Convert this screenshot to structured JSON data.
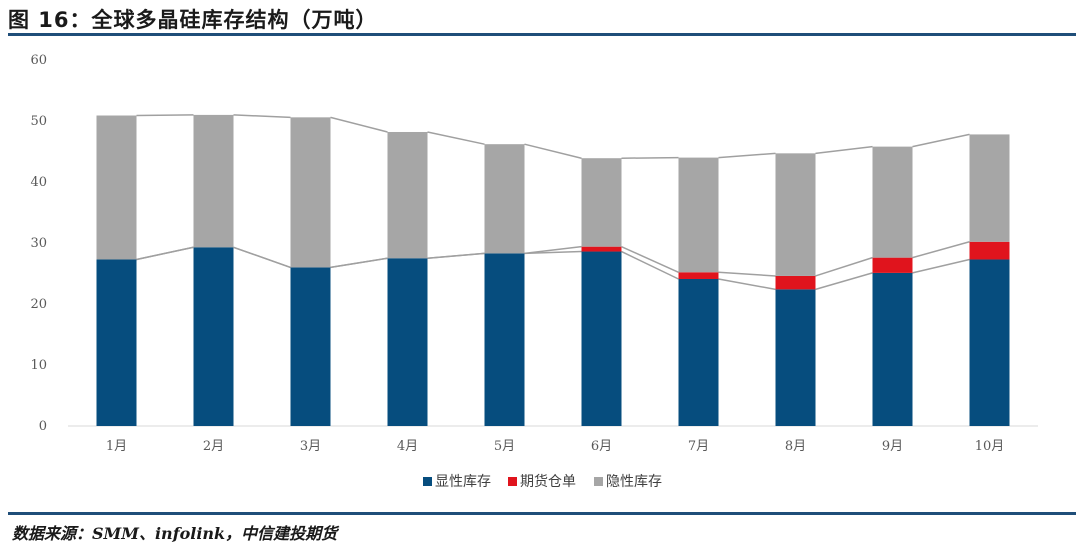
{
  "title": "图 16：全球多晶硅库存结构（万吨）",
  "source": "数据来源：SMM、infolink，中信建投期货",
  "chart_data": {
    "type": "bar",
    "stacked": true,
    "categories": [
      "1月",
      "2月",
      "3月",
      "4月",
      "5月",
      "6月",
      "7月",
      "8月",
      "9月",
      "10月"
    ],
    "series": [
      {
        "name": "显性库存",
        "color": "#064d7e",
        "values": [
          27.3,
          29.3,
          26.0,
          27.5,
          28.3,
          28.6,
          24.1,
          22.4,
          25.1,
          27.3
        ]
      },
      {
        "name": "期货仓单",
        "color": "#e0141d",
        "values": [
          0,
          0,
          0,
          0,
          0,
          0.8,
          1.1,
          2.2,
          2.5,
          2.9
        ]
      },
      {
        "name": "隐性库存",
        "color": "#a6a6a6",
        "values": [
          23.6,
          21.7,
          24.6,
          20.7,
          17.9,
          14.5,
          18.8,
          20.1,
          18.2,
          17.6
        ]
      }
    ],
    "ylim": [
      0,
      60
    ],
    "yticks": [
      0,
      10,
      20,
      30,
      40,
      50,
      60
    ],
    "xlabel": "",
    "ylabel": "",
    "legend": "bottom",
    "series_lines": true
  }
}
